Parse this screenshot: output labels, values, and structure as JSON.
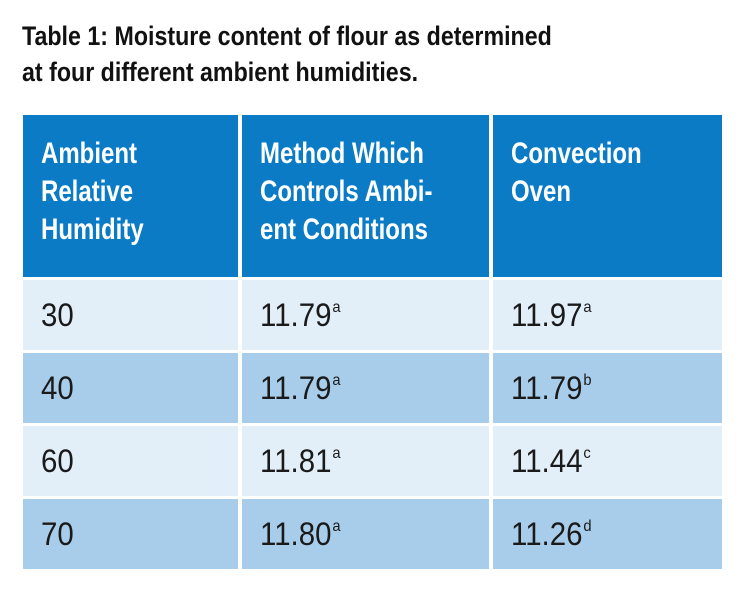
{
  "title": "Table 1: Moisture content of flour as determined\nat four different ambient humidities.",
  "table": {
    "headers": [
      "Ambient\nRelative\nHumidity",
      "Method Which\nControls Ambi-\nent Conditions",
      "Convection\nOven"
    ],
    "rows": [
      {
        "humidity": "30",
        "method": "11.79",
        "method_sup": "a",
        "oven": "11.97",
        "oven_sup": "a"
      },
      {
        "humidity": "40",
        "method": "11.79",
        "method_sup": "a",
        "oven": "11.79",
        "oven_sup": "b"
      },
      {
        "humidity": "60",
        "method": "11.81",
        "method_sup": "a",
        "oven": "11.44",
        "oven_sup": "c"
      },
      {
        "humidity": "70",
        "method": "11.80",
        "method_sup": "a",
        "oven": "11.26",
        "oven_sup": "d"
      }
    ]
  },
  "colors": {
    "header_bg": "#0a7bc4",
    "row_light": "#e2eef8",
    "row_dark": "#a8cdeb"
  }
}
